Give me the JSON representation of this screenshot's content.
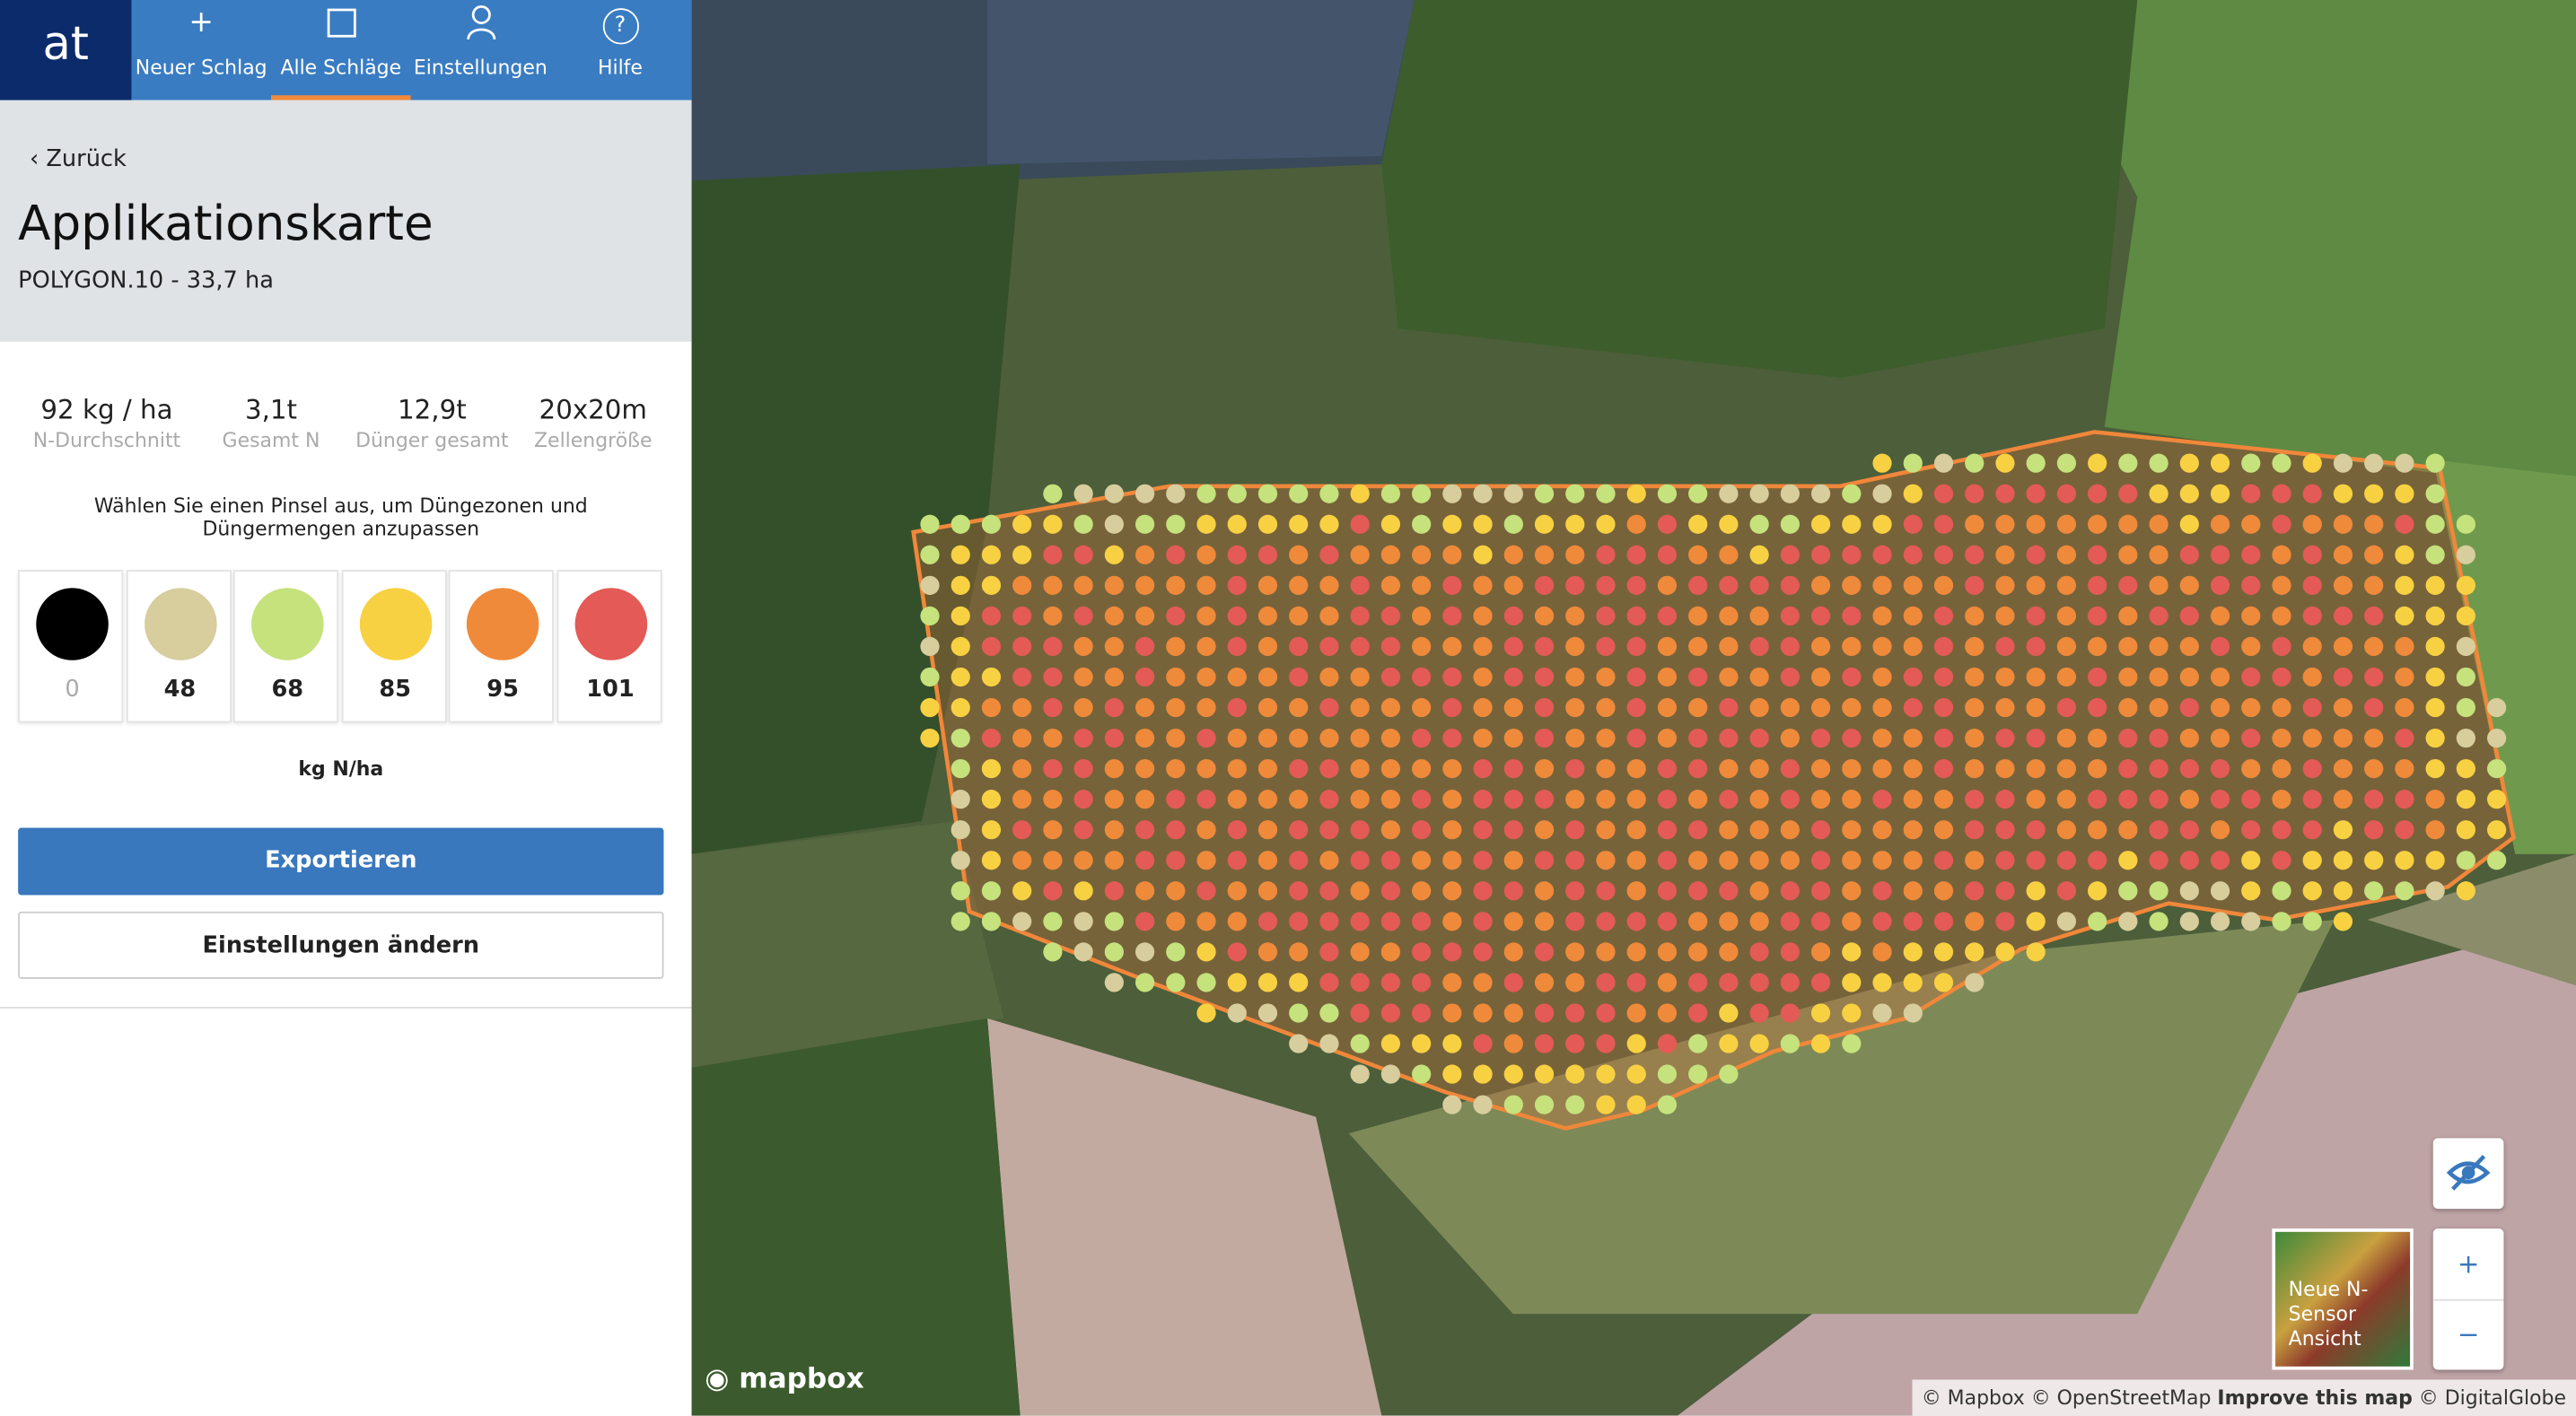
{
  "logo": "at",
  "nav": [
    {
      "icon": "+",
      "label": "Neuer Schlag"
    },
    {
      "label": "Alle Schläge"
    },
    {
      "label": "Einstellungen"
    },
    {
      "icon": "?",
      "label": "Hilfe"
    }
  ],
  "back": "Zurück",
  "title": "Applikationskarte",
  "subtitle": "POLYGON.10 - 33,7 ha",
  "stats": [
    {
      "value": "92 kg / ha",
      "label": "N-Durchschnitt"
    },
    {
      "value": "3,1t",
      "label": "Gesamt N"
    },
    {
      "value": "12,9t",
      "label": "Dünger gesamt"
    },
    {
      "value": "20x20m",
      "label": "Zellengröße"
    }
  ],
  "instruction": "Wählen Sie einen Pinsel aus, um Düngezonen und Düngermengen anzupassen",
  "palette": [
    {
      "value": 0,
      "color": "#000000"
    },
    {
      "value": 48,
      "color": "#d7cd9d"
    },
    {
      "value": 68,
      "color": "#c5e27c"
    },
    {
      "value": 85,
      "color": "#f8d142"
    },
    {
      "value": 95,
      "color": "#ef8a3a"
    },
    {
      "value": 101,
      "color": "#e45a56"
    }
  ],
  "unit": "kg N/ha",
  "buttons": {
    "export": "Exportieren",
    "settings": "Einstellungen ändern"
  },
  "map": {
    "thumbnail": "Neue N-Sensor Ansicht",
    "zoom_in": "+",
    "zoom_out": "−",
    "logo": "mapbox",
    "attribution": "© Mapbox © OpenStreetMap",
    "improve": "Improve this map",
    "imagery": "© DigitalGlobe"
  }
}
